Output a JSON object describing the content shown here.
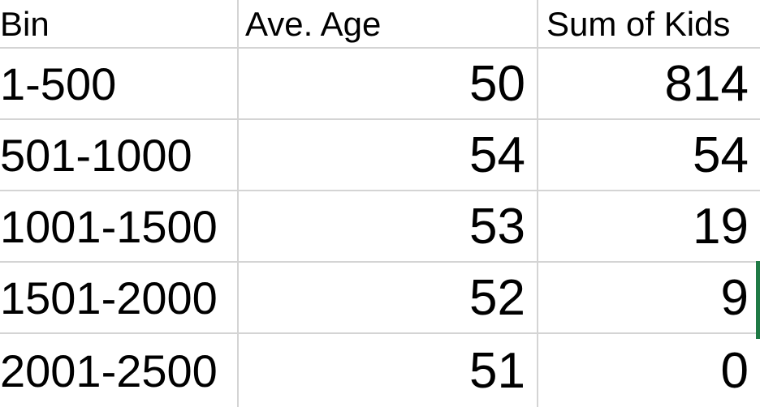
{
  "table": {
    "headers": {
      "bin": "Bin",
      "age": "Ave. Age",
      "kids": "Sum of Kids"
    },
    "rows": [
      {
        "bin": "1-500",
        "age": "50",
        "kids": "814"
      },
      {
        "bin": "501-1000",
        "age": "54",
        "kids": "54"
      },
      {
        "bin": "1001-1500",
        "age": "53",
        "kids": "19"
      },
      {
        "bin": "1501-2000",
        "age": "52",
        "kids": "9"
      },
      {
        "bin": "2001-2500",
        "age": "51",
        "kids": "0"
      }
    ]
  },
  "colors": {
    "gridline": "#d4d4d4",
    "selection_accent": "#1f7a45",
    "text": "#000000",
    "background": "#ffffff"
  }
}
